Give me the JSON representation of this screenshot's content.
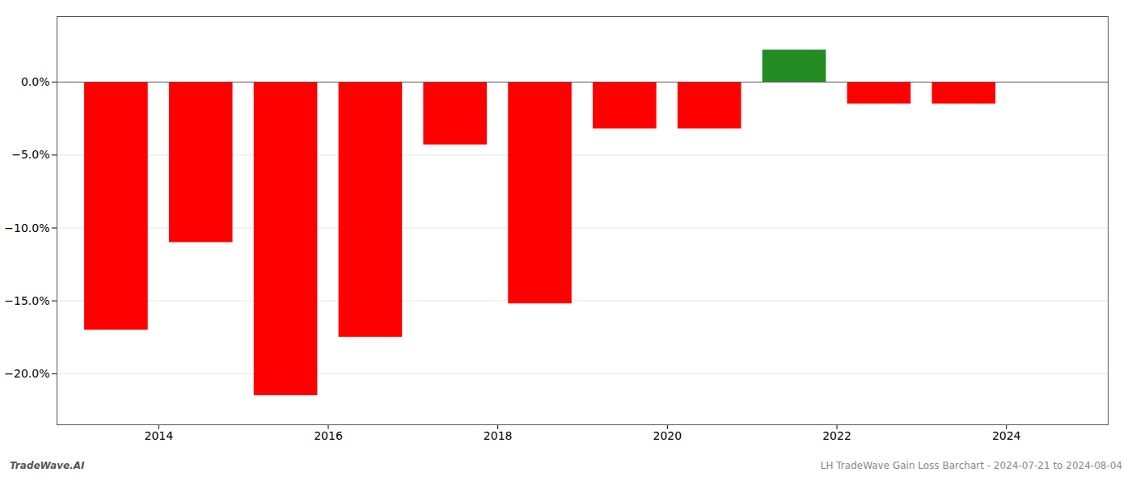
{
  "chart_data": {
    "type": "bar",
    "x": [
      2013.5,
      2014.5,
      2015.5,
      2016.5,
      2017.5,
      2018.5,
      2019.5,
      2020.5,
      2021.5,
      2022.5,
      2023.5
    ],
    "values": [
      -17.0,
      -11.0,
      -21.5,
      -17.5,
      -4.3,
      -15.2,
      -3.2,
      -3.2,
      2.2,
      -1.5,
      -1.5
    ],
    "colors": [
      "#ff0000",
      "#ff0000",
      "#ff0000",
      "#ff0000",
      "#ff0000",
      "#ff0000",
      "#ff0000",
      "#ff0000",
      "#228B22",
      "#ff0000",
      "#ff0000"
    ],
    "xlim": [
      2012.8,
      2025.2
    ],
    "xticks": [
      2014,
      2016,
      2018,
      2020,
      2022,
      2024
    ],
    "ylim": [
      -23.5,
      4.5
    ],
    "yticks": [
      {
        "value": 0.0,
        "label": "0.0%"
      },
      {
        "value": -5.0,
        "label": "−5.0%"
      },
      {
        "value": -10.0,
        "label": "−10.0%"
      },
      {
        "value": -15.0,
        "label": "−15.0%"
      },
      {
        "value": -20.0,
        "label": "−20.0%"
      }
    ],
    "grid": true,
    "annotations": [
      "TradeWave.AI",
      "LH TradeWave Gain Loss Barchart - 2024-07-21 to 2024-08-04"
    ]
  }
}
